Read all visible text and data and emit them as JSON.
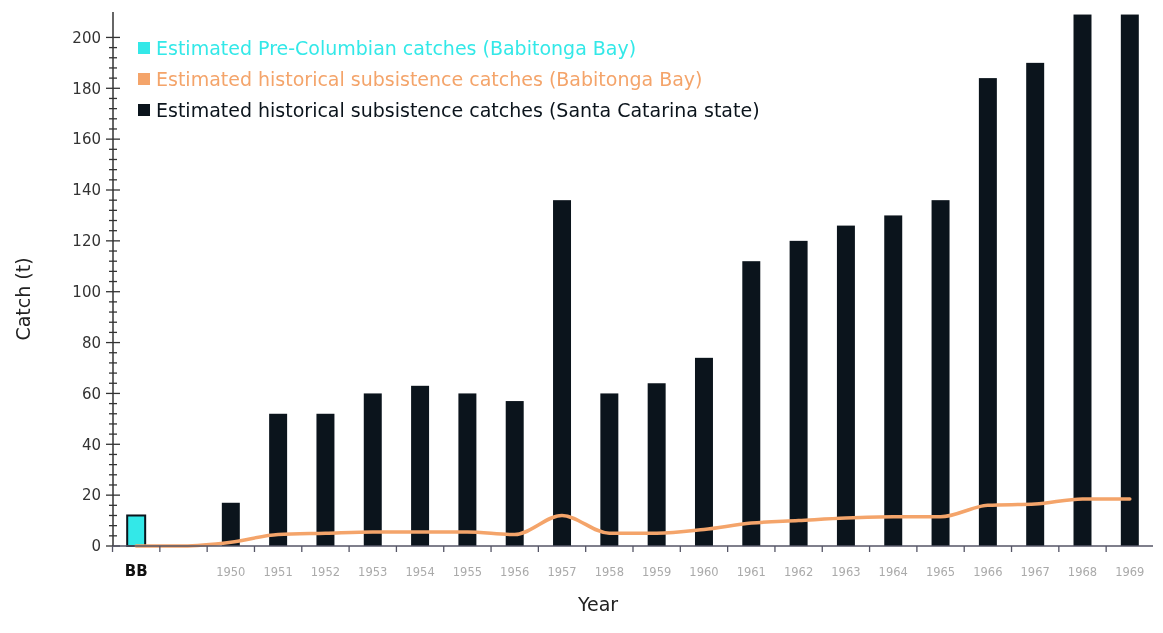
{
  "chart_data": {
    "type": "bar",
    "xlabel": "Year",
    "ylabel": "Catch (t)",
    "categories": [
      "BB",
      null,
      "1950",
      "1951",
      "1952",
      "1953",
      "1954",
      "1955",
      "1956",
      "1957",
      "1958",
      "1959",
      "1960",
      "1961",
      "1962",
      "1963",
      "1964",
      "1965",
      "1966",
      "1967",
      "1968",
      "1969"
    ],
    "series": [
      {
        "name": "Estimated Pre-Columbian catches (Babitonga Bay)",
        "color": "#33e8e8",
        "values": [
          12,
          null,
          null,
          null,
          null,
          null,
          null,
          null,
          null,
          null,
          null,
          null,
          null,
          null,
          null,
          null,
          null,
          null,
          null,
          null,
          null,
          null
        ]
      },
      {
        "name": "Estimated historical subsistence catches (Babitonga Bay)",
        "type": "line",
        "color": "#f4a46a",
        "values": [
          0,
          0,
          1.5,
          4.5,
          5,
          5.5,
          5.5,
          5.5,
          4.5,
          12,
          5,
          5,
          6.5,
          9,
          10,
          11,
          11.5,
          11.5,
          16,
          16.5,
          18.5,
          18.5
        ]
      },
      {
        "name": "Estimated historical subsistence catches (Santa Catarina state)",
        "color": "#0b141c",
        "values": [
          null,
          null,
          17,
          52,
          52,
          60,
          63,
          60,
          57,
          136,
          60,
          64,
          74,
          112,
          120,
          126,
          130,
          136,
          184,
          190,
          209,
          209
        ]
      }
    ],
    "ylim": [
      0,
      210
    ],
    "yticks": [
      0,
      {
        "value": 4,
        "label": null
      },
      {
        "value": 8,
        "label": null
      },
      {
        "value": 12,
        "label": null
      },
      {
        "value": 16,
        "label": null
      },
      20,
      {
        "value": 24,
        "label": null
      },
      {
        "value": 28,
        "label": null
      },
      {
        "value": 32,
        "label": null
      },
      {
        "value": 36,
        "label": null
      },
      40,
      {
        "value": 44,
        "label": null
      },
      {
        "value": 48,
        "label": null
      },
      {
        "value": 52,
        "label": null
      },
      {
        "value": 56,
        "label": null
      },
      60,
      {
        "value": 64,
        "label": null
      },
      {
        "value": 68,
        "label": null
      },
      {
        "value": 72,
        "label": null
      },
      {
        "value": 76,
        "label": null
      },
      80,
      {
        "value": 84,
        "label": null
      },
      {
        "value": 88,
        "label": null
      },
      {
        "value": 92,
        "label": null
      },
      {
        "value": 96,
        "label": null
      },
      100,
      {
        "value": 104,
        "label": null
      },
      {
        "value": 108,
        "label": null
      },
      {
        "value": 112,
        "label": null
      },
      {
        "value": 116,
        "label": null
      },
      120,
      {
        "value": 124,
        "label": null
      },
      {
        "value": 128,
        "label": null
      },
      {
        "value": 132,
        "label": null
      },
      {
        "value": 136,
        "label": null
      },
      140,
      {
        "value": 144,
        "label": null
      },
      {
        "value": 148,
        "label": null
      },
      {
        "value": 152,
        "label": null
      },
      {
        "value": 156,
        "label": null
      },
      160,
      {
        "value": 164,
        "label": null
      },
      {
        "value": 168,
        "label": null
      },
      {
        "value": 172,
        "label": null
      },
      {
        "value": 176,
        "label": null
      },
      180,
      {
        "value": 184,
        "label": null
      },
      {
        "value": 188,
        "label": null
      },
      {
        "value": 192,
        "label": null
      },
      {
        "value": 196,
        "label": null
      },
      200
    ],
    "legend": "top left",
    "grid": false,
    "marker": "none",
    "line_style": "solid"
  }
}
